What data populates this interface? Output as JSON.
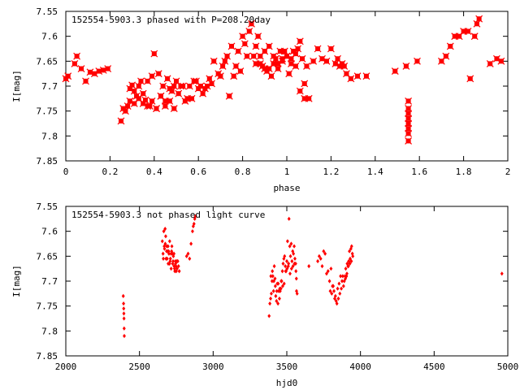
{
  "colors": {
    "points": "#ff0000",
    "axes": "#000000",
    "background": "#ffffff"
  },
  "chart_data": [
    {
      "type": "scatter",
      "title": "152554-5903.3 phased with P=208.20day",
      "xlabel": "phase",
      "ylabel": "I[mag]",
      "xlim": [
        0,
        2
      ],
      "ylim": [
        7.55,
        7.85
      ],
      "y_inverted": true,
      "grid": false,
      "marker": "star",
      "xticks": [
        "0",
        "0.2",
        "0.4",
        "0.6",
        "0.8",
        "1",
        "1.2",
        "1.4",
        "1.6",
        "1.8",
        "2"
      ],
      "yticks": [
        "7.55",
        "7.6",
        "7.65",
        "7.7",
        "7.75",
        "7.8",
        "7.85"
      ],
      "x": [
        0.0,
        0.01,
        0.04,
        0.05,
        0.07,
        0.09,
        0.11,
        0.13,
        0.15,
        0.17,
        0.19,
        0.25,
        0.26,
        0.28,
        0.29,
        0.3,
        0.31,
        0.32,
        0.33,
        0.34,
        0.35,
        0.36,
        0.37,
        0.38,
        0.39,
        0.4,
        0.41,
        0.42,
        0.43,
        0.44,
        0.45,
        0.46,
        0.47,
        0.48,
        0.49,
        0.5,
        0.27,
        0.29,
        0.31,
        0.33,
        0.35,
        0.37,
        0.39,
        0.41,
        0.43,
        0.45,
        0.47,
        0.49,
        0.52,
        0.54,
        0.56,
        0.58,
        0.6,
        0.62,
        0.64,
        0.66,
        0.51,
        0.53,
        0.55,
        0.57,
        0.59,
        0.61,
        0.63,
        0.65,
        0.67,
        0.69,
        0.7,
        0.71,
        0.72,
        0.73,
        0.74,
        0.75,
        0.76,
        0.77,
        0.78,
        0.79,
        0.8,
        0.81,
        0.82,
        0.83,
        0.84,
        0.85,
        0.86,
        0.87,
        0.88,
        0.89,
        0.9,
        0.91,
        0.92,
        0.93,
        0.94,
        0.95,
        0.96,
        0.97,
        0.98,
        0.99,
        1.0,
        1.01,
        1.02,
        1.03,
        1.04,
        1.05,
        1.06,
        1.07,
        1.08,
        1.09,
        0.86,
        0.88,
        0.9,
        0.92,
        0.94,
        0.96,
        0.98,
        1.0,
        1.02,
        1.04,
        1.06,
        1.08,
        1.1,
        1.12,
        1.14,
        1.16,
        1.18,
        1.2,
        1.22,
        1.23,
        1.24,
        1.25,
        1.26,
        1.27,
        1.29,
        1.32,
        1.36,
        1.49,
        1.54,
        1.55,
        1.55,
        1.55,
        1.55,
        1.55,
        1.55,
        1.55,
        1.55,
        1.59,
        1.7,
        1.72,
        1.74,
        1.76,
        1.78,
        1.8,
        1.82,
        1.83,
        1.85,
        1.86,
        1.87,
        1.92,
        1.95,
        1.97
      ],
      "y": [
        7.685,
        7.68,
        7.655,
        7.64,
        7.665,
        7.69,
        7.672,
        7.675,
        7.67,
        7.668,
        7.665,
        7.77,
        7.745,
        7.74,
        7.705,
        7.698,
        7.735,
        7.72,
        7.7,
        7.69,
        7.715,
        7.728,
        7.69,
        7.74,
        7.68,
        7.635,
        7.745,
        7.675,
        7.72,
        7.7,
        7.73,
        7.685,
        7.73,
        7.71,
        7.7,
        7.69,
        7.75,
        7.73,
        7.71,
        7.725,
        7.735,
        7.74,
        7.73,
        7.745,
        7.72,
        7.74,
        7.705,
        7.745,
        7.7,
        7.73,
        7.7,
        7.69,
        7.705,
        7.715,
        7.7,
        7.695,
        7.715,
        7.7,
        7.725,
        7.725,
        7.69,
        7.7,
        7.705,
        7.685,
        7.65,
        7.675,
        7.68,
        7.66,
        7.65,
        7.64,
        7.72,
        7.62,
        7.68,
        7.66,
        7.63,
        7.67,
        7.6,
        7.615,
        7.64,
        7.59,
        7.575,
        7.64,
        7.62,
        7.6,
        7.655,
        7.66,
        7.63,
        7.67,
        7.665,
        7.68,
        7.655,
        7.645,
        7.665,
        7.63,
        7.65,
        7.63,
        7.64,
        7.675,
        7.645,
        7.63,
        7.66,
        7.625,
        7.71,
        7.645,
        7.695,
        7.66,
        7.655,
        7.64,
        7.665,
        7.62,
        7.64,
        7.655,
        7.645,
        7.64,
        7.655,
        7.635,
        7.61,
        7.725,
        7.725,
        7.65,
        7.625,
        7.645,
        7.65,
        7.625,
        7.655,
        7.645,
        7.66,
        7.655,
        7.66,
        7.675,
        7.685,
        7.68,
        7.68,
        7.67,
        7.66,
        7.73,
        7.745,
        7.755,
        7.765,
        7.775,
        7.785,
        7.795,
        7.81,
        7.65,
        7.65,
        7.64,
        7.62,
        7.6,
        7.6,
        7.59,
        7.59,
        7.685,
        7.6,
        7.575,
        7.565,
        7.655,
        7.645,
        7.65
      ]
    },
    {
      "type": "scatter",
      "title": "152554-5903.3 not phased light curve",
      "xlabel": "hjd0",
      "ylabel": "I[mag]",
      "xlim": [
        2000,
        5000
      ],
      "ylim": [
        7.55,
        7.85
      ],
      "y_inverted": true,
      "grid": false,
      "marker": "diamond",
      "xticks": [
        "2000",
        "2500",
        "3000",
        "3500",
        "4000",
        "4500",
        "5000"
      ],
      "yticks": [
        "7.55",
        "7.6",
        "7.65",
        "7.7",
        "7.75",
        "7.8",
        "7.85"
      ],
      "x": [
        2390,
        2392,
        2393,
        2394,
        2395,
        2396,
        2397,
        2655,
        2660,
        2665,
        2670,
        2675,
        2680,
        2685,
        2690,
        2695,
        2700,
        2705,
        2710,
        2715,
        2720,
        2725,
        2730,
        2735,
        2740,
        2745,
        2750,
        2755,
        2760,
        2765,
        2770,
        2662,
        2668,
        2674,
        2678,
        2684,
        2688,
        2694,
        2698,
        2704,
        2708,
        2714,
        2718,
        2724,
        2728,
        2734,
        2738,
        2744,
        2748,
        2754,
        2820,
        2830,
        2840,
        2850,
        2860,
        2865,
        2870,
        2875,
        2880,
        3380,
        3385,
        3390,
        3395,
        3400,
        3405,
        3410,
        3415,
        3420,
        3425,
        3430,
        3435,
        3440,
        3445,
        3450,
        3455,
        3460,
        3465,
        3470,
        3475,
        3480,
        3485,
        3490,
        3495,
        3500,
        3505,
        3510,
        3515,
        3520,
        3525,
        3530,
        3535,
        3540,
        3545,
        3550,
        3555,
        3560,
        3565,
        3570,
        3392,
        3402,
        3412,
        3422,
        3432,
        3442,
        3452,
        3462,
        3472,
        3482,
        3492,
        3502,
        3512,
        3522,
        3532,
        3542,
        3552,
        3562,
        3566,
        3650,
        3710,
        3720,
        3730,
        3740,
        3750,
        3760,
        3770,
        3780,
        3790,
        3800,
        3810,
        3820,
        3830,
        3840,
        3850,
        3860,
        3870,
        3880,
        3890,
        3895,
        3900,
        3905,
        3910,
        3915,
        3920,
        3925,
        3930,
        3935,
        3940,
        3945,
        3795,
        3805,
        3815,
        3825,
        3835,
        3845,
        3855,
        3865,
        3875,
        3885,
        3898,
        3908,
        3918,
        3928,
        3938,
        3948,
        4960
      ],
      "y": [
        7.73,
        7.745,
        7.755,
        7.765,
        7.775,
        7.795,
        7.81,
        7.62,
        7.645,
        7.6,
        7.635,
        7.625,
        7.655,
        7.63,
        7.64,
        7.665,
        7.645,
        7.62,
        7.655,
        7.675,
        7.63,
        7.665,
        7.65,
        7.67,
        7.68,
        7.665,
        7.68,
        7.675,
        7.66,
        7.67,
        7.68,
        7.655,
        7.63,
        7.595,
        7.61,
        7.64,
        7.655,
        7.63,
        7.64,
        7.665,
        7.66,
        7.645,
        7.64,
        7.645,
        7.66,
        7.645,
        7.675,
        7.66,
        7.67,
        7.66,
        7.65,
        7.645,
        7.655,
        7.625,
        7.6,
        7.59,
        7.585,
        7.575,
        7.57,
        7.77,
        7.745,
        7.735,
        7.725,
        7.7,
        7.69,
        7.72,
        7.67,
        7.695,
        7.73,
        7.74,
        7.705,
        7.745,
        7.72,
        7.735,
        7.72,
        7.715,
        7.7,
        7.68,
        7.665,
        7.655,
        7.65,
        7.67,
        7.68,
        7.66,
        7.62,
        7.67,
        7.575,
        7.63,
        7.65,
        7.625,
        7.66,
        7.64,
        7.645,
        7.63,
        7.655,
        7.665,
        7.695,
        7.725,
        7.69,
        7.68,
        7.7,
        7.71,
        7.72,
        7.705,
        7.715,
        7.7,
        7.71,
        7.705,
        7.68,
        7.675,
        7.665,
        7.685,
        7.675,
        7.67,
        7.665,
        7.68,
        7.72,
        7.67,
        7.66,
        7.65,
        7.655,
        7.67,
        7.64,
        7.645,
        7.685,
        7.68,
        7.7,
        7.675,
        7.71,
        7.72,
        7.73,
        7.745,
        7.735,
        7.725,
        7.715,
        7.69,
        7.7,
        7.69,
        7.675,
        7.69,
        7.665,
        7.67,
        7.66,
        7.64,
        7.655,
        7.635,
        7.63,
        7.645,
        7.72,
        7.725,
        7.71,
        7.735,
        7.74,
        7.715,
        7.705,
        7.69,
        7.7,
        7.71,
        7.695,
        7.685,
        7.67,
        7.665,
        7.66,
        7.65,
        7.685
      ]
    }
  ]
}
